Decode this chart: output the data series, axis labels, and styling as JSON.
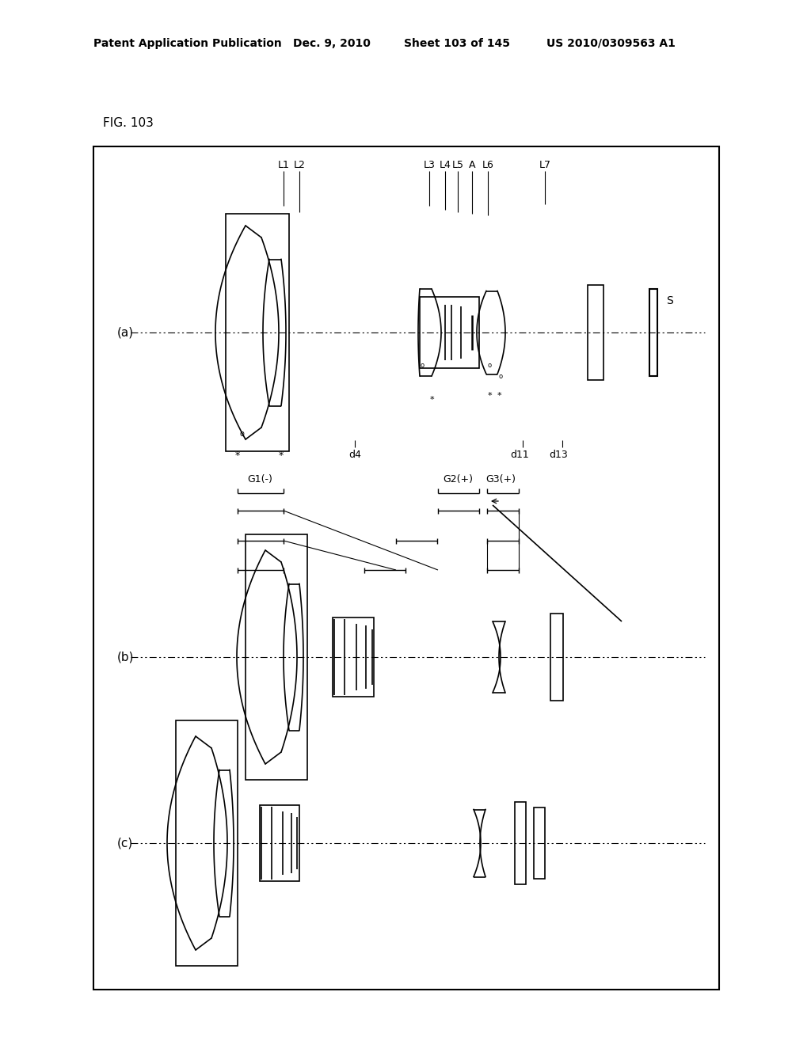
{
  "title_line1": "Patent Application Publication",
  "title_date": "Dec. 9, 2010",
  "title_sheet": "Sheet 103 of 145",
  "title_patent": "US 2010/0309563 A1",
  "fig_label": "FIG. 103",
  "background": "#ffffff",
  "panel_a_label": "(a)",
  "panel_b_label": "(b)",
  "panel_c_label": "(c)",
  "sensor_label": "S"
}
